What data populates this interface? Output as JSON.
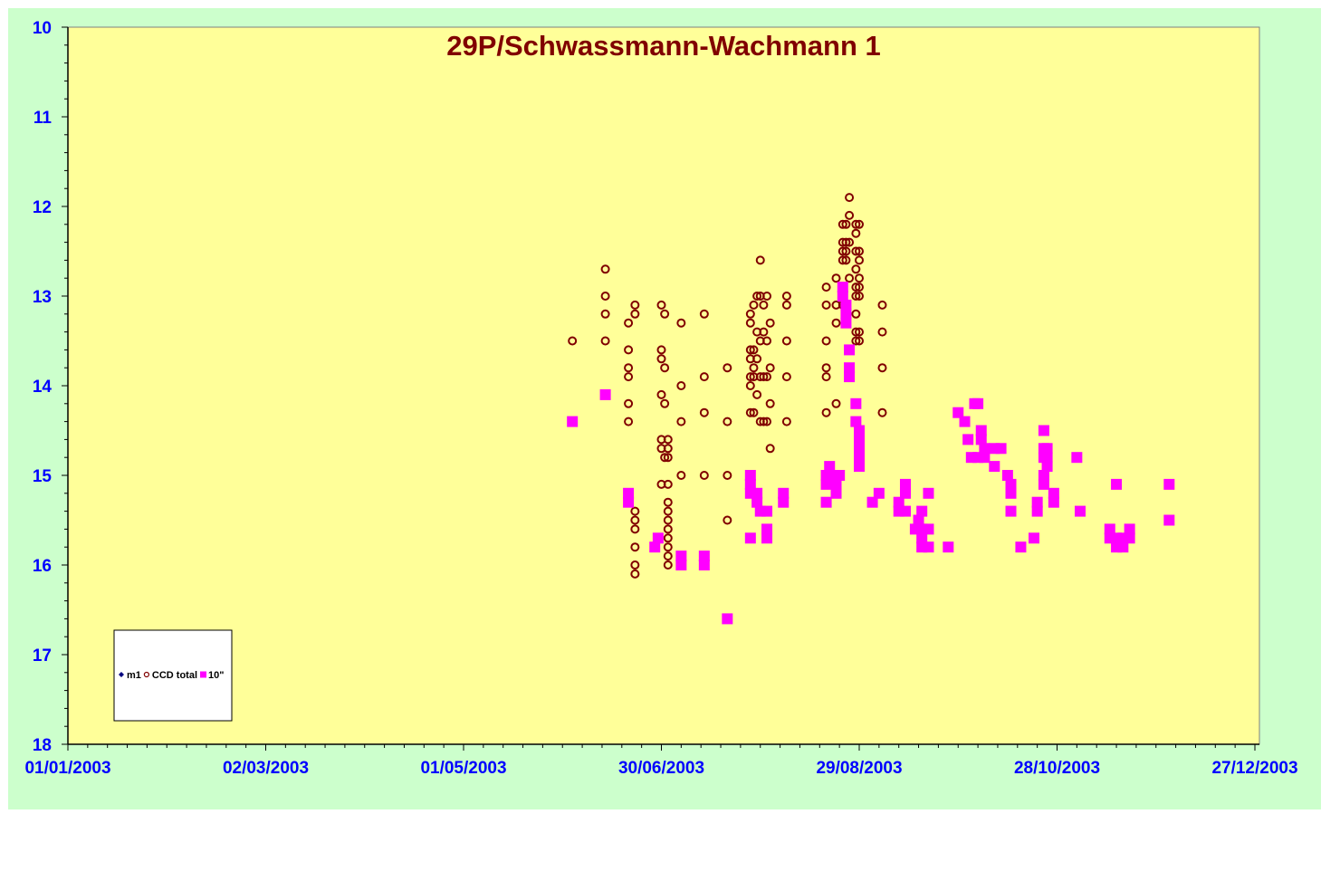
{
  "colors": {
    "background": "#ccffcc",
    "plot_area": "#ffff99",
    "axis_labels": "#0000ff",
    "title": "#800000",
    "ccd_total": "#800000",
    "ten_inch": "#ff00ff",
    "m1": "#000080"
  },
  "chart_data": {
    "type": "scatter",
    "title": "29P/Schwassmann-Wachmann  1",
    "xlabel": "",
    "ylabel": "",
    "x_ticks": [
      "01/01/2003",
      "02/03/2003",
      "01/05/2003",
      "30/06/2003",
      "29/08/2003",
      "28/10/2003",
      "27/12/2003"
    ],
    "xlim": [
      "2003-01-01",
      "2003-12-27"
    ],
    "y_ticks": [
      "10",
      "11",
      "12",
      "13",
      "14",
      "15",
      "16",
      "17",
      "18"
    ],
    "ylim": [
      10,
      18
    ],
    "y_inverted": true,
    "grid": false,
    "legend_position": "bottom-left",
    "series": [
      {
        "name": "m1",
        "marker": "diamond",
        "color": "#000080",
        "points": []
      },
      {
        "name": "CCD total",
        "marker": "open-circle",
        "color": "#800000",
        "points": [
          [
            "2003-06-03",
            13.5
          ],
          [
            "2003-06-13",
            12.7
          ],
          [
            "2003-06-13",
            13.0
          ],
          [
            "2003-06-13",
            13.2
          ],
          [
            "2003-06-13",
            13.5
          ],
          [
            "2003-06-20",
            13.3
          ],
          [
            "2003-06-20",
            13.6
          ],
          [
            "2003-06-20",
            13.8
          ],
          [
            "2003-06-20",
            13.9
          ],
          [
            "2003-06-20",
            14.2
          ],
          [
            "2003-06-20",
            14.4
          ],
          [
            "2003-06-22",
            13.1
          ],
          [
            "2003-06-22",
            13.2
          ],
          [
            "2003-06-22",
            15.4
          ],
          [
            "2003-06-22",
            15.5
          ],
          [
            "2003-06-22",
            15.6
          ],
          [
            "2003-06-22",
            15.8
          ],
          [
            "2003-06-22",
            16.0
          ],
          [
            "2003-06-22",
            16.1
          ],
          [
            "2003-07-02",
            14.6
          ],
          [
            "2003-07-02",
            14.7
          ],
          [
            "2003-07-02",
            14.8
          ],
          [
            "2003-07-02",
            15.1
          ],
          [
            "2003-07-02",
            15.3
          ],
          [
            "2003-07-02",
            15.4
          ],
          [
            "2003-07-02",
            15.5
          ],
          [
            "2003-07-02",
            15.6
          ],
          [
            "2003-07-02",
            15.7
          ],
          [
            "2003-07-02",
            15.8
          ],
          [
            "2003-07-02",
            15.9
          ],
          [
            "2003-07-02",
            16.0
          ],
          [
            "2003-06-30",
            13.1
          ],
          [
            "2003-06-30",
            13.6
          ],
          [
            "2003-06-30",
            13.7
          ],
          [
            "2003-06-30",
            14.1
          ],
          [
            "2003-06-30",
            14.6
          ],
          [
            "2003-06-30",
            14.7
          ],
          [
            "2003-06-30",
            15.1
          ],
          [
            "2003-07-01",
            13.2
          ],
          [
            "2003-07-01",
            13.8
          ],
          [
            "2003-07-01",
            14.2
          ],
          [
            "2003-07-01",
            14.8
          ],
          [
            "2003-07-06",
            13.3
          ],
          [
            "2003-07-06",
            14.0
          ],
          [
            "2003-07-06",
            14.4
          ],
          [
            "2003-07-06",
            15.0
          ],
          [
            "2003-07-13",
            13.2
          ],
          [
            "2003-07-13",
            13.9
          ],
          [
            "2003-07-13",
            14.3
          ],
          [
            "2003-07-13",
            15.0
          ],
          [
            "2003-07-20",
            13.8
          ],
          [
            "2003-07-20",
            14.4
          ],
          [
            "2003-07-20",
            15.0
          ],
          [
            "2003-07-20",
            15.5
          ],
          [
            "2003-07-27",
            13.2
          ],
          [
            "2003-07-27",
            13.3
          ],
          [
            "2003-07-27",
            13.6
          ],
          [
            "2003-07-27",
            13.7
          ],
          [
            "2003-07-27",
            13.9
          ],
          [
            "2003-07-27",
            14.0
          ],
          [
            "2003-07-27",
            14.3
          ],
          [
            "2003-07-28",
            13.1
          ],
          [
            "2003-07-28",
            13.6
          ],
          [
            "2003-07-28",
            13.8
          ],
          [
            "2003-07-28",
            13.9
          ],
          [
            "2003-07-28",
            14.3
          ],
          [
            "2003-07-29",
            13.0
          ],
          [
            "2003-07-29",
            13.4
          ],
          [
            "2003-07-29",
            13.7
          ],
          [
            "2003-07-29",
            14.1
          ],
          [
            "2003-07-30",
            12.6
          ],
          [
            "2003-07-30",
            13.0
          ],
          [
            "2003-07-30",
            13.5
          ],
          [
            "2003-07-30",
            13.9
          ],
          [
            "2003-07-30",
            14.4
          ],
          [
            "2003-07-31",
            13.1
          ],
          [
            "2003-07-31",
            13.4
          ],
          [
            "2003-07-31",
            13.9
          ],
          [
            "2003-07-31",
            14.4
          ],
          [
            "2003-08-01",
            13.0
          ],
          [
            "2003-08-01",
            13.5
          ],
          [
            "2003-08-01",
            13.9
          ],
          [
            "2003-08-01",
            14.4
          ],
          [
            "2003-08-02",
            13.3
          ],
          [
            "2003-08-02",
            13.8
          ],
          [
            "2003-08-02",
            14.2
          ],
          [
            "2003-08-02",
            14.7
          ],
          [
            "2003-08-07",
            13.0
          ],
          [
            "2003-08-07",
            13.1
          ],
          [
            "2003-08-07",
            13.5
          ],
          [
            "2003-08-07",
            13.9
          ],
          [
            "2003-08-07",
            14.4
          ],
          [
            "2003-08-19",
            12.9
          ],
          [
            "2003-08-19",
            13.1
          ],
          [
            "2003-08-19",
            13.5
          ],
          [
            "2003-08-19",
            13.8
          ],
          [
            "2003-08-19",
            13.9
          ],
          [
            "2003-08-19",
            14.3
          ],
          [
            "2003-08-22",
            12.8
          ],
          [
            "2003-08-22",
            13.1
          ],
          [
            "2003-08-22",
            13.3
          ],
          [
            "2003-08-22",
            14.2
          ],
          [
            "2003-08-24",
            12.2
          ],
          [
            "2003-08-24",
            12.4
          ],
          [
            "2003-08-24",
            12.5
          ],
          [
            "2003-08-24",
            12.6
          ],
          [
            "2003-08-24",
            13.1
          ],
          [
            "2003-08-25",
            12.2
          ],
          [
            "2003-08-25",
            12.4
          ],
          [
            "2003-08-25",
            12.5
          ],
          [
            "2003-08-25",
            12.6
          ],
          [
            "2003-08-26",
            11.9
          ],
          [
            "2003-08-26",
            12.1
          ],
          [
            "2003-08-26",
            12.4
          ],
          [
            "2003-08-26",
            12.8
          ],
          [
            "2003-08-28",
            12.2
          ],
          [
            "2003-08-28",
            12.3
          ],
          [
            "2003-08-28",
            12.5
          ],
          [
            "2003-08-28",
            12.7
          ],
          [
            "2003-08-28",
            12.9
          ],
          [
            "2003-08-28",
            13.0
          ],
          [
            "2003-08-28",
            13.2
          ],
          [
            "2003-08-28",
            13.4
          ],
          [
            "2003-08-28",
            13.5
          ],
          [
            "2003-08-29",
            12.2
          ],
          [
            "2003-08-29",
            12.5
          ],
          [
            "2003-08-29",
            12.6
          ],
          [
            "2003-08-29",
            12.8
          ],
          [
            "2003-08-29",
            12.9
          ],
          [
            "2003-08-29",
            13.0
          ],
          [
            "2003-08-29",
            13.4
          ],
          [
            "2003-08-29",
            13.5
          ],
          [
            "2003-09-05",
            13.1
          ],
          [
            "2003-09-05",
            13.4
          ],
          [
            "2003-09-05",
            13.8
          ],
          [
            "2003-09-05",
            14.3
          ]
        ]
      },
      {
        "name": "10\"",
        "marker": "filled-square",
        "color": "#ff00ff",
        "points": [
          [
            "2003-06-03",
            14.4
          ],
          [
            "2003-06-13",
            14.1
          ],
          [
            "2003-06-20",
            15.2
          ],
          [
            "2003-06-20",
            15.3
          ],
          [
            "2003-06-28",
            15.8
          ],
          [
            "2003-06-29",
            15.7
          ],
          [
            "2003-07-06",
            15.9
          ],
          [
            "2003-07-06",
            16.0
          ],
          [
            "2003-07-13",
            15.9
          ],
          [
            "2003-07-13",
            16.0
          ],
          [
            "2003-07-20",
            16.6
          ],
          [
            "2003-07-27",
            15.0
          ],
          [
            "2003-07-27",
            15.1
          ],
          [
            "2003-07-27",
            15.2
          ],
          [
            "2003-07-27",
            15.7
          ],
          [
            "2003-07-29",
            15.2
          ],
          [
            "2003-07-29",
            15.3
          ],
          [
            "2003-07-30",
            15.4
          ],
          [
            "2003-08-01",
            15.4
          ],
          [
            "2003-08-01",
            15.6
          ],
          [
            "2003-08-01",
            15.7
          ],
          [
            "2003-08-06",
            15.2
          ],
          [
            "2003-08-06",
            15.3
          ],
          [
            "2003-08-19",
            15.0
          ],
          [
            "2003-08-19",
            15.1
          ],
          [
            "2003-08-19",
            15.3
          ],
          [
            "2003-08-20",
            14.9
          ],
          [
            "2003-08-20",
            15.0
          ],
          [
            "2003-08-22",
            15.1
          ],
          [
            "2003-08-22",
            15.2
          ],
          [
            "2003-08-23",
            15.0
          ],
          [
            "2003-08-24",
            12.9
          ],
          [
            "2003-08-24",
            13.0
          ],
          [
            "2003-08-25",
            13.1
          ],
          [
            "2003-08-25",
            13.2
          ],
          [
            "2003-08-25",
            13.3
          ],
          [
            "2003-08-26",
            13.6
          ],
          [
            "2003-08-26",
            13.8
          ],
          [
            "2003-08-26",
            13.9
          ],
          [
            "2003-08-28",
            14.2
          ],
          [
            "2003-08-28",
            14.4
          ],
          [
            "2003-08-29",
            14.5
          ],
          [
            "2003-08-29",
            14.6
          ],
          [
            "2003-08-29",
            14.7
          ],
          [
            "2003-08-29",
            14.8
          ],
          [
            "2003-08-29",
            14.9
          ],
          [
            "2003-09-02",
            15.3
          ],
          [
            "2003-09-04",
            15.2
          ],
          [
            "2003-09-10",
            15.3
          ],
          [
            "2003-09-10",
            15.4
          ],
          [
            "2003-09-12",
            15.1
          ],
          [
            "2003-09-12",
            15.2
          ],
          [
            "2003-09-12",
            15.4
          ],
          [
            "2003-09-15",
            15.6
          ],
          [
            "2003-09-16",
            15.5
          ],
          [
            "2003-09-17",
            15.4
          ],
          [
            "2003-09-17",
            15.6
          ],
          [
            "2003-09-17",
            15.7
          ],
          [
            "2003-09-17",
            15.8
          ],
          [
            "2003-09-19",
            15.2
          ],
          [
            "2003-09-19",
            15.6
          ],
          [
            "2003-09-19",
            15.8
          ],
          [
            "2003-09-25",
            15.8
          ],
          [
            "2003-09-28",
            14.3
          ],
          [
            "2003-09-30",
            14.4
          ],
          [
            "2003-10-01",
            14.6
          ],
          [
            "2003-10-02",
            14.8
          ],
          [
            "2003-10-03",
            14.2
          ],
          [
            "2003-10-04",
            14.2
          ],
          [
            "2003-10-04",
            14.8
          ],
          [
            "2003-10-05",
            14.5
          ],
          [
            "2003-10-05",
            14.6
          ],
          [
            "2003-10-06",
            14.7
          ],
          [
            "2003-10-06",
            14.8
          ],
          [
            "2003-10-09",
            14.7
          ],
          [
            "2003-10-09",
            14.9
          ],
          [
            "2003-10-11",
            14.7
          ],
          [
            "2003-10-13",
            15.0
          ],
          [
            "2003-10-14",
            15.1
          ],
          [
            "2003-10-14",
            15.2
          ],
          [
            "2003-10-14",
            15.4
          ],
          [
            "2003-10-17",
            15.8
          ],
          [
            "2003-10-21",
            15.7
          ],
          [
            "2003-10-22",
            15.3
          ],
          [
            "2003-10-22",
            15.4
          ],
          [
            "2003-10-24",
            14.5
          ],
          [
            "2003-10-24",
            14.7
          ],
          [
            "2003-10-24",
            14.8
          ],
          [
            "2003-10-24",
            15.0
          ],
          [
            "2003-10-24",
            15.1
          ],
          [
            "2003-10-25",
            14.7
          ],
          [
            "2003-10-25",
            14.8
          ],
          [
            "2003-10-25",
            14.9
          ],
          [
            "2003-10-27",
            15.2
          ],
          [
            "2003-10-27",
            15.3
          ],
          [
            "2003-11-03",
            14.8
          ],
          [
            "2003-11-04",
            15.4
          ],
          [
            "2003-11-13",
            15.6
          ],
          [
            "2003-11-13",
            15.7
          ],
          [
            "2003-11-15",
            15.1
          ],
          [
            "2003-11-15",
            15.7
          ],
          [
            "2003-11-15",
            15.8
          ],
          [
            "2003-11-17",
            15.7
          ],
          [
            "2003-11-17",
            15.8
          ],
          [
            "2003-11-19",
            15.6
          ],
          [
            "2003-11-19",
            15.7
          ],
          [
            "2003-12-01",
            15.1
          ],
          [
            "2003-12-01",
            15.5
          ]
        ]
      }
    ]
  }
}
